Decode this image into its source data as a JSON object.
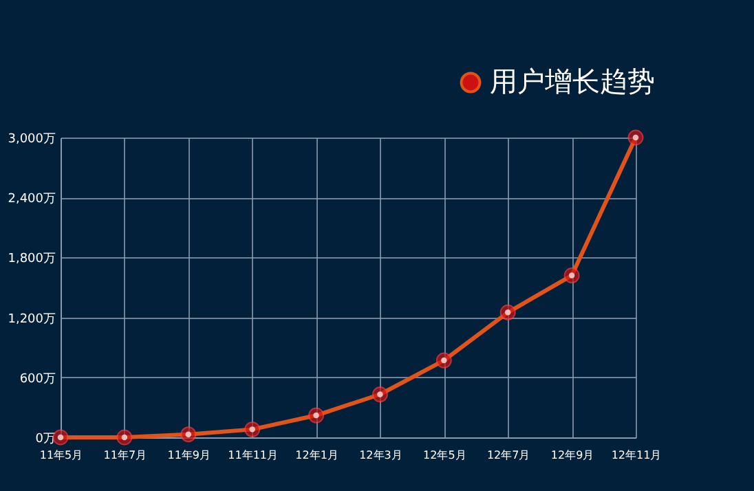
{
  "chart_data": {
    "type": "line",
    "categories": [
      "11年5月",
      "11年7月",
      "11年9月",
      "11年11月",
      "12年1月",
      "12年3月",
      "12年5月",
      "12年7月",
      "12年9月",
      "12年11月"
    ],
    "series": [
      {
        "name": "用户增长趋势",
        "color": "#e0541a",
        "values": [
          0,
          0,
          30,
          80,
          220,
          430,
          770,
          1250,
          1620,
          3000
        ]
      }
    ],
    "ylim": [
      0,
      3000
    ],
    "yticks": [
      {
        "value": 0,
        "label": "0万"
      },
      {
        "value": 600,
        "label": "600万"
      },
      {
        "value": 1200,
        "label": "1,200万"
      },
      {
        "value": 1800,
        "label": "1,800万"
      },
      {
        "value": 2400,
        "label": "2,400万"
      },
      {
        "value": 3000,
        "label": "3,000万"
      }
    ],
    "grid": true,
    "legend": "top right",
    "marker": "circle",
    "line_style": "solid"
  }
}
